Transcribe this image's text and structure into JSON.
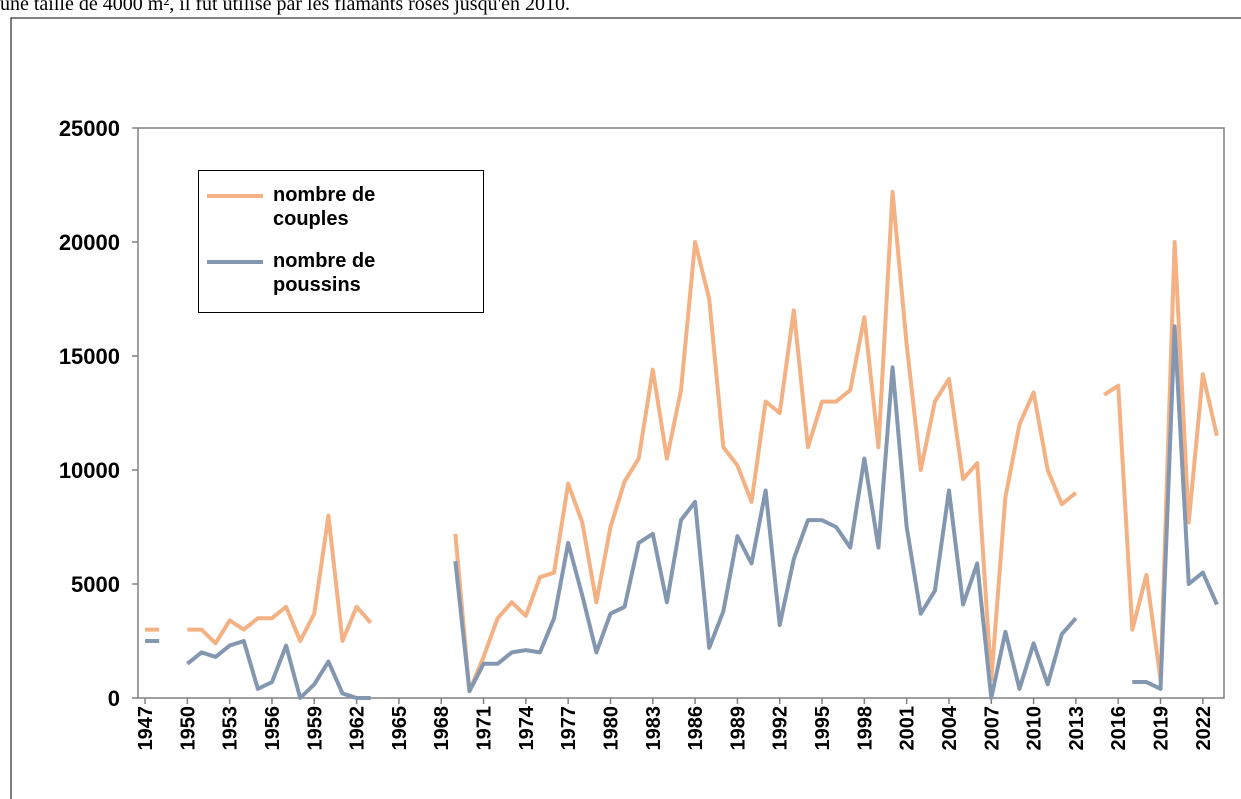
{
  "caption": "une taille de 4000 m², il fut utilisé par les flamants roses jusqu'en 2010.",
  "chart_data": {
    "type": "line",
    "x": [
      1947,
      1948,
      1949,
      1950,
      1951,
      1952,
      1953,
      1954,
      1955,
      1956,
      1957,
      1958,
      1959,
      1960,
      1961,
      1962,
      1963,
      1964,
      1965,
      1966,
      1967,
      1968,
      1969,
      1970,
      1971,
      1972,
      1973,
      1974,
      1975,
      1976,
      1977,
      1978,
      1979,
      1980,
      1981,
      1982,
      1983,
      1984,
      1985,
      1986,
      1987,
      1988,
      1989,
      1990,
      1991,
      1992,
      1993,
      1994,
      1995,
      1996,
      1997,
      1998,
      1999,
      2000,
      2001,
      2002,
      2003,
      2004,
      2005,
      2006,
      2007,
      2008,
      2009,
      2010,
      2011,
      2012,
      2013,
      2014,
      2015,
      2016,
      2017,
      2018,
      2019,
      2020,
      2021,
      2022,
      2023
    ],
    "series": [
      {
        "name": "nombre de couples",
        "color": "#f4b183",
        "values": [
          3000,
          3000,
          null,
          3000,
          3000,
          2400,
          3400,
          3000,
          3500,
          3500,
          4000,
          2500,
          3700,
          8000,
          2500,
          4000,
          3300,
          null,
          null,
          null,
          null,
          null,
          7200,
          300,
          1800,
          3500,
          4200,
          3600,
          5300,
          5500,
          9400,
          7700,
          4200,
          7500,
          9500,
          10500,
          14400,
          10500,
          13500,
          20000,
          17500,
          11000,
          10200,
          8600,
          13000,
          12500,
          17000,
          11000,
          13000,
          13000,
          13500,
          16700,
          11000,
          22200,
          15500,
          10000,
          13000,
          14000,
          9600,
          10300,
          800,
          8800,
          12000,
          13400,
          10000,
          8500,
          9000,
          null,
          13300,
          13700,
          3000,
          5400,
          800,
          20000,
          7700,
          14200,
          11500
        ]
      },
      {
        "name": "nombre de poussins",
        "color": "#8497b0",
        "values": [
          2500,
          2500,
          null,
          1500,
          2000,
          1800,
          2300,
          2500,
          400,
          700,
          2300,
          0,
          600,
          1600,
          200,
          0,
          0,
          null,
          null,
          null,
          null,
          null,
          6000,
          300,
          1500,
          1500,
          2000,
          2100,
          2000,
          3500,
          6800,
          4500,
          2000,
          3700,
          4000,
          6800,
          7200,
          4200,
          7800,
          8600,
          2200,
          3800,
          7100,
          5900,
          9100,
          3200,
          6100,
          7800,
          7800,
          7500,
          6600,
          10500,
          6600,
          14500,
          7500,
          3700,
          4700,
          9100,
          4100,
          5900,
          0,
          2900,
          400,
          2400,
          600,
          2800,
          3500,
          null,
          null,
          null,
          700,
          700,
          400,
          16300,
          5000,
          5500,
          4100
        ]
      }
    ],
    "xlim": [
      1946.5,
      2023.5
    ],
    "xticks": [
      1947,
      1950,
      1953,
      1956,
      1959,
      1962,
      1965,
      1968,
      1971,
      1974,
      1977,
      1980,
      1983,
      1986,
      1989,
      1992,
      1995,
      1998,
      2001,
      2004,
      2007,
      2010,
      2013,
      2016,
      2019,
      2022
    ],
    "ylim": [
      0,
      25000
    ],
    "yticks": [
      0,
      5000,
      10000,
      15000,
      20000,
      25000
    ],
    "legend": "upper left"
  }
}
